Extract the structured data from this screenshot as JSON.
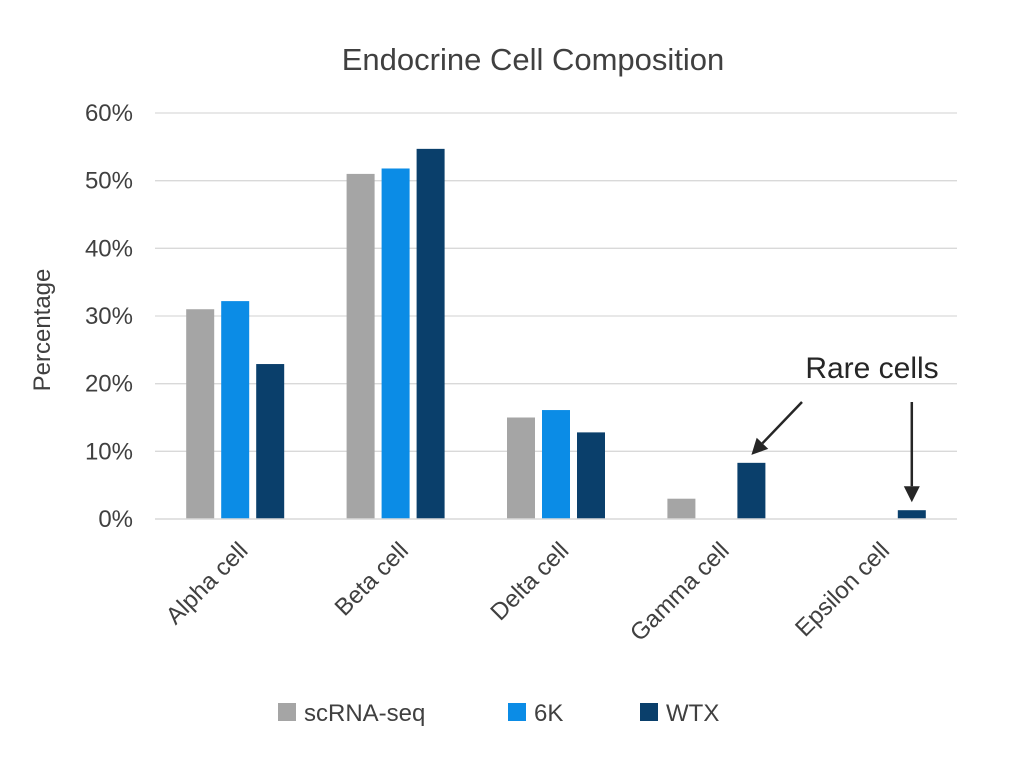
{
  "chart_data": {
    "type": "bar",
    "title": "Endocrine Cell Composition",
    "xlabel": "",
    "ylabel": "Percentage",
    "ylim": [
      0,
      60
    ],
    "yticks": [
      "0%",
      "10%",
      "20%",
      "30%",
      "40%",
      "50%",
      "60%"
    ],
    "ytick_values": [
      0,
      10,
      20,
      30,
      40,
      50,
      60
    ],
    "categories": [
      "Alpha cell",
      "Beta cell",
      "Delta cell",
      "Gamma cell",
      "Epsilon cell"
    ],
    "series": [
      {
        "name": "scRNA-seq",
        "color": "#a5a5a5",
        "values": [
          31,
          51,
          15,
          3,
          0
        ]
      },
      {
        "name": "6K",
        "color": "#0b8ce6",
        "values": [
          32.2,
          51.8,
          16.1,
          0,
          0
        ]
      },
      {
        "name": "WTX",
        "color": "#0a3f6b",
        "values": [
          22.9,
          54.7,
          12.8,
          8.3,
          1.3
        ]
      }
    ],
    "grid": true,
    "legend_position": "bottom",
    "annotations": [
      {
        "text": "Rare cells",
        "points_to": [
          "Gamma cell",
          "Epsilon cell"
        ]
      }
    ]
  }
}
